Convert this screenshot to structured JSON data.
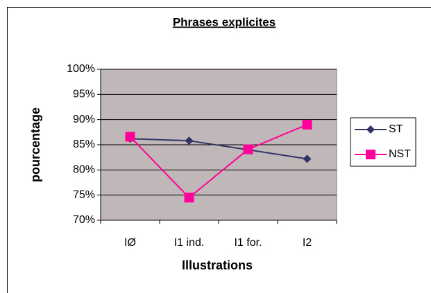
{
  "chart_data": {
    "type": "line",
    "title": "Phrases explicites",
    "x_label": "Illustrations",
    "y_label": "pourcentage",
    "categories": [
      "IØ",
      "I1 ind.",
      "I1 for.",
      "I2"
    ],
    "series": [
      {
        "name": "ST",
        "color": "#333366",
        "marker": "diamond",
        "values": [
          86.2,
          85.8,
          84.0,
          82.2
        ]
      },
      {
        "name": "NST",
        "color": "#ff0099",
        "marker": "square",
        "values": [
          86.6,
          74.5,
          84.1,
          89.0
        ]
      }
    ],
    "ylim": [
      70,
      100
    ],
    "yticks": [
      {
        "value": 70,
        "label": "70%"
      },
      {
        "value": 75,
        "label": "75%"
      },
      {
        "value": 80,
        "label": "80%"
      },
      {
        "value": 85,
        "label": "85%"
      },
      {
        "value": 90,
        "label": "90%"
      },
      {
        "value": 95,
        "label": "95%"
      },
      {
        "value": 100,
        "label": "100%"
      }
    ],
    "grid": true,
    "legend": "right",
    "plot_background": "#c0b8b8"
  }
}
